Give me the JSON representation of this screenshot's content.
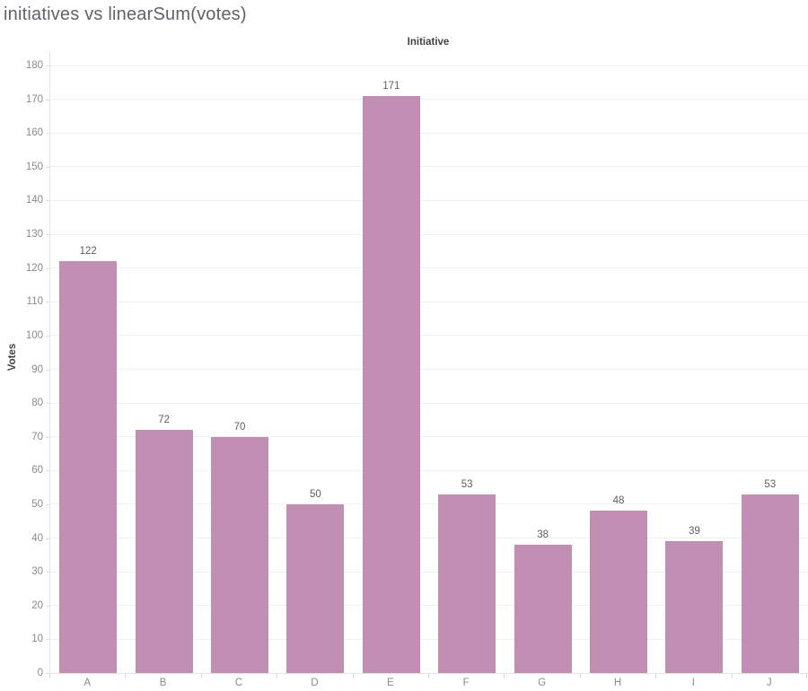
{
  "chart_data": {
    "type": "bar",
    "title": "initiatives vs linearSum(votes)",
    "xlabel": "Initiative",
    "ylabel": "Votes",
    "categories": [
      "A",
      "B",
      "C",
      "D",
      "E",
      "F",
      "G",
      "H",
      "I",
      "J"
    ],
    "values": [
      122,
      72,
      70,
      50,
      171,
      53,
      38,
      48,
      39,
      53
    ],
    "bar_value_labels": [
      "122",
      "72",
      "70",
      "50",
      "171",
      "53",
      "38",
      "48",
      "39",
      "53"
    ],
    "ylim": [
      0,
      184
    ],
    "ytick_min": 0,
    "ytick_max": 180,
    "ytick_step": 10,
    "grid": true,
    "legend_position": "none",
    "bar_color": "#c18fb3",
    "colors": {
      "bar": "#c18fb3",
      "background": "#ffffff"
    }
  }
}
